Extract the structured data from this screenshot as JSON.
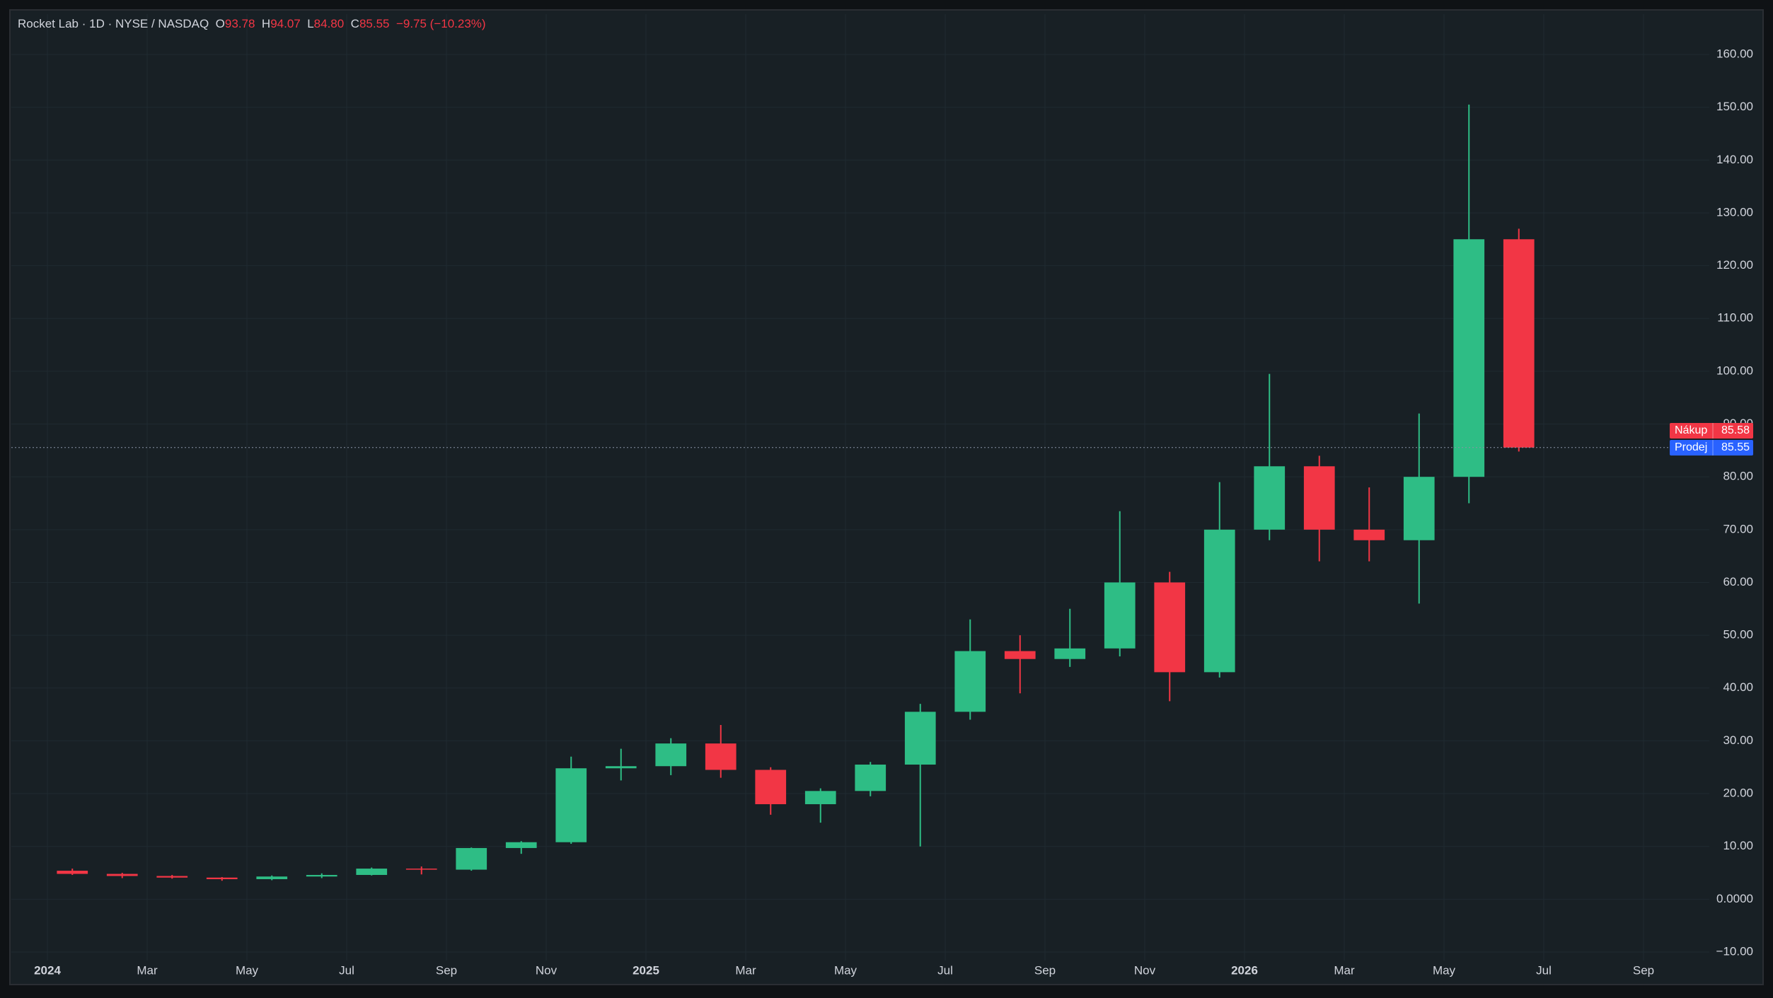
{
  "header": {
    "symbol": "Rocket Lab",
    "interval": "1D",
    "exchange": "NYSE / NASDAQ",
    "open_label": "O",
    "open": "93.78",
    "high_label": "H",
    "high": "94.07",
    "low_label": "L",
    "low": "84.80",
    "close_label": "C",
    "close": "85.55",
    "change": "−9.75 (−10.23%)"
  },
  "chart_data": {
    "type": "candlestick",
    "x": [
      "2024-01",
      "2024-02",
      "2024-03",
      "2024-04",
      "2024-05",
      "2024-06",
      "2024-07",
      "2024-08",
      "2024-09",
      "2024-10",
      "2024-11",
      "2024-12",
      "2025-01",
      "2025-02",
      "2025-03",
      "2025-04",
      "2025-05",
      "2025-06",
      "2025-07",
      "2025-08",
      "2025-09",
      "2025-10",
      "2025-11",
      "2025-12",
      "2026-01",
      "2026-02",
      "2026-03",
      "2026-04",
      "2026-05",
      "2026-06"
    ],
    "open": [
      5.4,
      4.8,
      4.4,
      4.1,
      3.8,
      4.3,
      4.6,
      5.8,
      5.6,
      9.7,
      10.8,
      24.8,
      25.2,
      29.5,
      24.5,
      18.0,
      20.5,
      25.5,
      35.5,
      47.0,
      45.5,
      47.5,
      60.0,
      43.0,
      70.0,
      82.0,
      70.0,
      68.0,
      80.0,
      125.0
    ],
    "high": [
      5.8,
      5.0,
      4.6,
      4.2,
      4.5,
      4.9,
      6.0,
      6.2,
      9.8,
      11.0,
      27.0,
      28.5,
      30.5,
      33.0,
      25.0,
      21.0,
      26.0,
      37.0,
      53.0,
      50.0,
      55.0,
      73.5,
      62.0,
      79.0,
      99.5,
      84.0,
      78.0,
      92.0,
      150.5,
      127.0
    ],
    "low": [
      4.6,
      4.0,
      3.9,
      3.5,
      3.6,
      4.0,
      4.5,
      4.7,
      5.4,
      8.6,
      10.5,
      22.5,
      23.5,
      23.0,
      16.0,
      14.5,
      19.5,
      10.0,
      34.0,
      39.0,
      44.0,
      46.0,
      37.5,
      42.0,
      68.0,
      64.0,
      64.0,
      56.0,
      75.0,
      84.8
    ],
    "close": [
      4.8,
      4.4,
      4.1,
      3.8,
      4.3,
      4.6,
      5.8,
      5.6,
      9.7,
      10.8,
      24.8,
      25.2,
      29.5,
      24.5,
      18.0,
      20.5,
      25.5,
      35.5,
      47.0,
      45.5,
      47.5,
      60.0,
      43.0,
      70.0,
      82.0,
      70.0,
      68.0,
      80.0,
      125.0,
      85.55
    ],
    "up_color": "#2ebd85",
    "down_color": "#f23645",
    "ylim": [
      -10,
      160
    ],
    "yticks": [
      {
        "value": -10,
        "label": "−10.00"
      },
      {
        "value": 0,
        "label": "0.0000"
      },
      {
        "value": 10,
        "label": "10.00"
      },
      {
        "value": 20,
        "label": "20.00"
      },
      {
        "value": 30,
        "label": "30.00"
      },
      {
        "value": 40,
        "label": "40.00"
      },
      {
        "value": 50,
        "label": "50.00"
      },
      {
        "value": 60,
        "label": "60.00"
      },
      {
        "value": 70,
        "label": "70.00"
      },
      {
        "value": 80,
        "label": "80.00"
      },
      {
        "value": 90,
        "label": "90.00"
      },
      {
        "value": 100,
        "label": "100.00"
      },
      {
        "value": 110,
        "label": "110.00"
      },
      {
        "value": 120,
        "label": "120.00"
      },
      {
        "value": 130,
        "label": "130.00"
      },
      {
        "value": 140,
        "label": "140.00"
      },
      {
        "value": 150,
        "label": "150.00"
      },
      {
        "value": 160,
        "label": "160.00"
      }
    ],
    "xticks": [
      {
        "value": "2024-01",
        "label": "2024"
      },
      {
        "value": "2024-03",
        "label": "Mar"
      },
      {
        "value": "2024-05",
        "label": "May"
      },
      {
        "value": "2024-07",
        "label": "Jul"
      },
      {
        "value": "2024-09",
        "label": "Sep"
      },
      {
        "value": "2024-11",
        "label": "Nov"
      },
      {
        "value": "2025-01",
        "label": "2025"
      },
      {
        "value": "2025-03",
        "label": "Mar"
      },
      {
        "value": "2025-05",
        "label": "May"
      },
      {
        "value": "2025-07",
        "label": "Jul"
      },
      {
        "value": "2025-09",
        "label": "Sep"
      },
      {
        "value": "2025-11",
        "label": "Nov"
      },
      {
        "value": "2026-01",
        "label": "2026"
      },
      {
        "value": "2026-03",
        "label": "Mar"
      },
      {
        "value": "2026-05",
        "label": "May"
      },
      {
        "value": "2026-07",
        "label": "Jul"
      },
      {
        "value": "2026-09",
        "label": "Sep"
      }
    ],
    "grid": true,
    "price_lines": [
      {
        "name": "Nákup",
        "value": 85.58,
        "color": "#f23645"
      },
      {
        "name": "Prodej",
        "value": 85.55,
        "color": "#2962ff"
      }
    ]
  }
}
